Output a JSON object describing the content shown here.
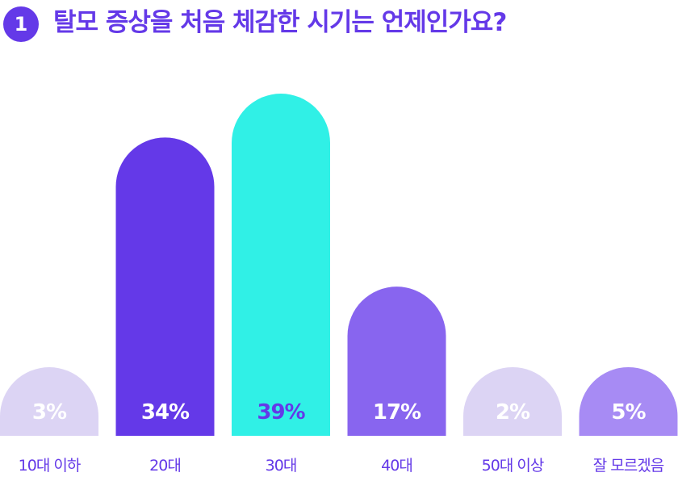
{
  "header": {
    "number": "1",
    "title": "탈모 증상을 처음 체감한 시기는 언제인가요?"
  },
  "colors": {
    "accent": "#6439e8",
    "title": "#6439e8"
  },
  "chart_data": {
    "type": "bar",
    "categories": [
      "10대 이하",
      "20대",
      "30대",
      "40대",
      "50대 이상",
      "잘 모르겠음"
    ],
    "values": [
      3,
      34,
      39,
      17,
      2,
      5
    ],
    "value_labels": [
      "3%",
      "34%",
      "39%",
      "17%",
      "2%",
      "5%"
    ],
    "unit": "%",
    "bar_colors": [
      "#dcd4f4",
      "#6439e8",
      "#30f0e6",
      "#8865ef",
      "#dcd4f4",
      "#a78bf4"
    ],
    "value_label_colors": [
      "#ffffff",
      "#ffffff",
      "#6439e8",
      "#ffffff",
      "#ffffff",
      "#ffffff"
    ],
    "category_label_color": "#6439e8",
    "grid": false,
    "legend": "none"
  }
}
